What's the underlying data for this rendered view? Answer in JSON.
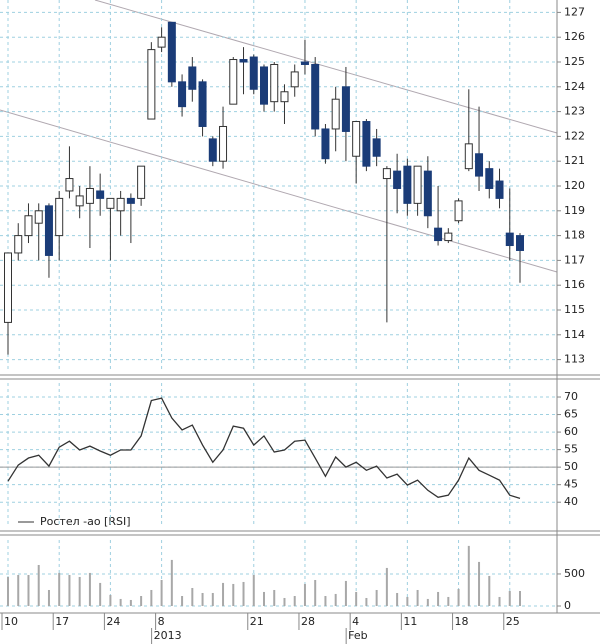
{
  "chart_data": [
    {
      "type": "candlestick",
      "categories": [
        "10",
        null,
        null,
        null,
        null,
        "17",
        null,
        null,
        null,
        null,
        "24",
        null,
        null,
        null,
        null,
        "8",
        null,
        null,
        null,
        null,
        null,
        null,
        null,
        null,
        "21",
        null,
        null,
        null,
        null,
        "28",
        null,
        null,
        null,
        null,
        "4",
        null,
        null,
        null,
        null,
        "11",
        null,
        null,
        null,
        null,
        "18",
        null,
        null,
        null,
        null,
        "25",
        null
      ],
      "period_labels": [
        null,
        null,
        null,
        null,
        null,
        null,
        null,
        null,
        null,
        null,
        null,
        null,
        null,
        null,
        null,
        "2013",
        null,
        null,
        null,
        null,
        null,
        null,
        null,
        null,
        null,
        null,
        null,
        null,
        null,
        null,
        null,
        null,
        null,
        null,
        "Feb",
        null,
        null,
        null,
        null,
        null,
        null,
        null,
        null,
        null,
        null,
        null,
        null,
        null,
        null,
        null,
        null
      ],
      "open": [
        114.5,
        117.3,
        118,
        118.5,
        119.2,
        118,
        119.8,
        119.2,
        119.3,
        119.8,
        119.1,
        119,
        119.5,
        119.5,
        122.7,
        125.6,
        126.6,
        124.2,
        124.8,
        124.2,
        121.9,
        121,
        123.3,
        125.1,
        125.2,
        124.8,
        123.4,
        123.4,
        124,
        125,
        124.9,
        122.3,
        122.3,
        124,
        121.2,
        122.6,
        121.9,
        120.3,
        120.6,
        120.8,
        119.3,
        120.6,
        118.3,
        117.8,
        118.6,
        120.7,
        121.3,
        120.7,
        120.2,
        118.1,
        118
      ],
      "high": [
        117.3,
        118.5,
        119.3,
        119.3,
        119.3,
        119.8,
        121.6,
        120,
        120.8,
        120.5,
        119.5,
        119.8,
        119.7,
        120.8,
        125.8,
        126.4,
        126.6,
        124.5,
        125.2,
        124.3,
        122,
        123.2,
        125.2,
        125.6,
        125.3,
        124.9,
        125,
        124.1,
        124.9,
        125.9,
        125.2,
        122.5,
        124,
        124.8,
        122.6,
        122.7,
        122.3,
        120.8,
        121.3,
        121.1,
        120.8,
        121.2,
        120,
        118.3,
        119.5,
        123.9,
        123.2,
        121,
        120.7,
        119.9,
        118.1
      ],
      "low": [
        113.2,
        117,
        117.7,
        117,
        116.3,
        117,
        119.5,
        118.7,
        117.5,
        118.8,
        117,
        118,
        117.7,
        119.2,
        122.7,
        125.4,
        124,
        122.8,
        123.4,
        122,
        120.8,
        120.7,
        123.3,
        123.7,
        123.7,
        123,
        123,
        122.5,
        123.6,
        124.5,
        122,
        120.9,
        121.4,
        121,
        120.1,
        120.6,
        120.8,
        114.5,
        118.9,
        118.8,
        118.8,
        118.3,
        117.6,
        117.7,
        118.5,
        120.6,
        119.8,
        119.5,
        119.1,
        117,
        116.1
      ],
      "close": [
        117.3,
        118,
        118.8,
        119,
        117.2,
        119.5,
        120.3,
        119.6,
        119.9,
        119.5,
        119.5,
        119.5,
        119.3,
        120.8,
        125.5,
        126,
        124.2,
        123.2,
        123.9,
        122.4,
        121,
        122.4,
        125.1,
        125,
        123.9,
        123.3,
        124.9,
        123.8,
        124.6,
        124.9,
        122.3,
        121.1,
        123.5,
        122.2,
        122.6,
        120.8,
        121.2,
        120.7,
        119.9,
        119.3,
        120.8,
        118.8,
        117.8,
        118.1,
        119.4,
        121.7,
        120.4,
        119.9,
        119.5,
        117.6,
        117.4
      ],
      "up_color": "#ffffff",
      "down_color": "#1b3c78",
      "ylim": [
        112.5,
        127.5
      ],
      "yticks": [
        113,
        114,
        115,
        116,
        117,
        118,
        119,
        120,
        121,
        122,
        123,
        124,
        125,
        126,
        127
      ],
      "grid": true
    },
    {
      "type": "line",
      "series": [
        {
          "name": "Ростел -ао [RSI]",
          "color": "#333333",
          "values": [
            46,
            50.6,
            52.6,
            53.4,
            50.3,
            55.7,
            57.4,
            54.9,
            56,
            54.6,
            53.4,
            54.9,
            54.9,
            58.9,
            69,
            69.7,
            64,
            60.6,
            62,
            56.3,
            51.4,
            54.9,
            61.7,
            61.1,
            56.3,
            58.9,
            54.3,
            54.9,
            57.4,
            57.7,
            52.6,
            47.4,
            52.9,
            50,
            51.4,
            49.1,
            50.3,
            46.9,
            48,
            44.9,
            46.3,
            43.4,
            41.4,
            42,
            46.3,
            52.6,
            49.1,
            47.7,
            46.3,
            42,
            41.1
          ]
        }
      ],
      "ylim": [
        33.5,
        74
      ],
      "yticks": [
        40,
        45,
        50,
        55,
        60,
        65,
        70
      ],
      "hlines": [
        50
      ],
      "grid": true
    },
    {
      "type": "bar",
      "values": [
        453,
        484,
        484,
        640,
        250,
        516,
        484,
        453,
        516,
        360,
        172,
        110,
        94,
        156,
        250,
        406,
        719,
        156,
        281,
        203,
        203,
        360,
        344,
        375,
        484,
        219,
        250,
        125,
        156,
        344,
        406,
        156,
        188,
        391,
        219,
        125,
        250,
        594,
        203,
        141,
        250,
        110,
        219,
        141,
        266,
        938,
        688,
        469,
        141,
        234,
        234
      ],
      "color": "#a8a8a8",
      "ylim": [
        0,
        1030
      ],
      "yticks": [
        0,
        500
      ],
      "grid": true
    }
  ]
}
